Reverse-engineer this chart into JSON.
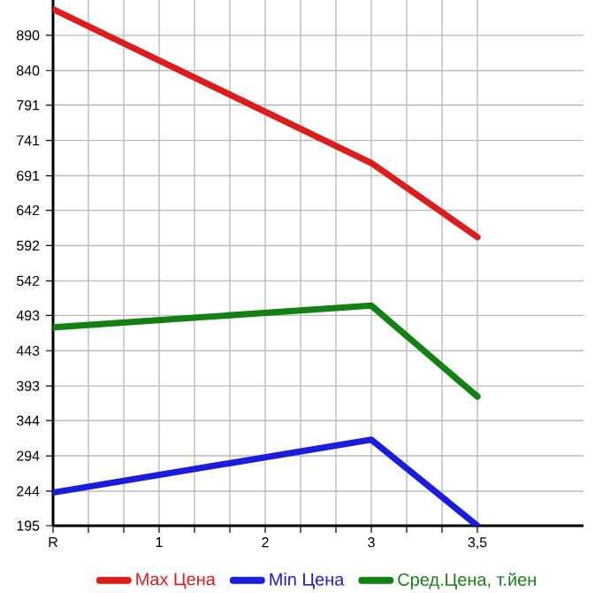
{
  "chart_data": {
    "type": "line",
    "categories": [
      "R",
      "1",
      "2",
      "3",
      "3,5"
    ],
    "series": [
      {
        "name": "Max Цена",
        "color": "#dd1c1c",
        "values": [
          927,
          null,
          null,
          709,
          604
        ]
      },
      {
        "name": "Min Цена",
        "color": "#1c1cdd",
        "values": [
          242,
          null,
          null,
          317,
          195
        ]
      },
      {
        "name": "Сред.Цена, т.йен",
        "color": "#138013",
        "values": [
          476,
          null,
          null,
          507,
          378
        ]
      }
    ],
    "ylim": [
      195,
      940
    ],
    "yticks": [
      195,
      244,
      294,
      344,
      393,
      443,
      493,
      542,
      592,
      642,
      691,
      741,
      791,
      840,
      890
    ],
    "grid": true,
    "legend": "bottom"
  }
}
